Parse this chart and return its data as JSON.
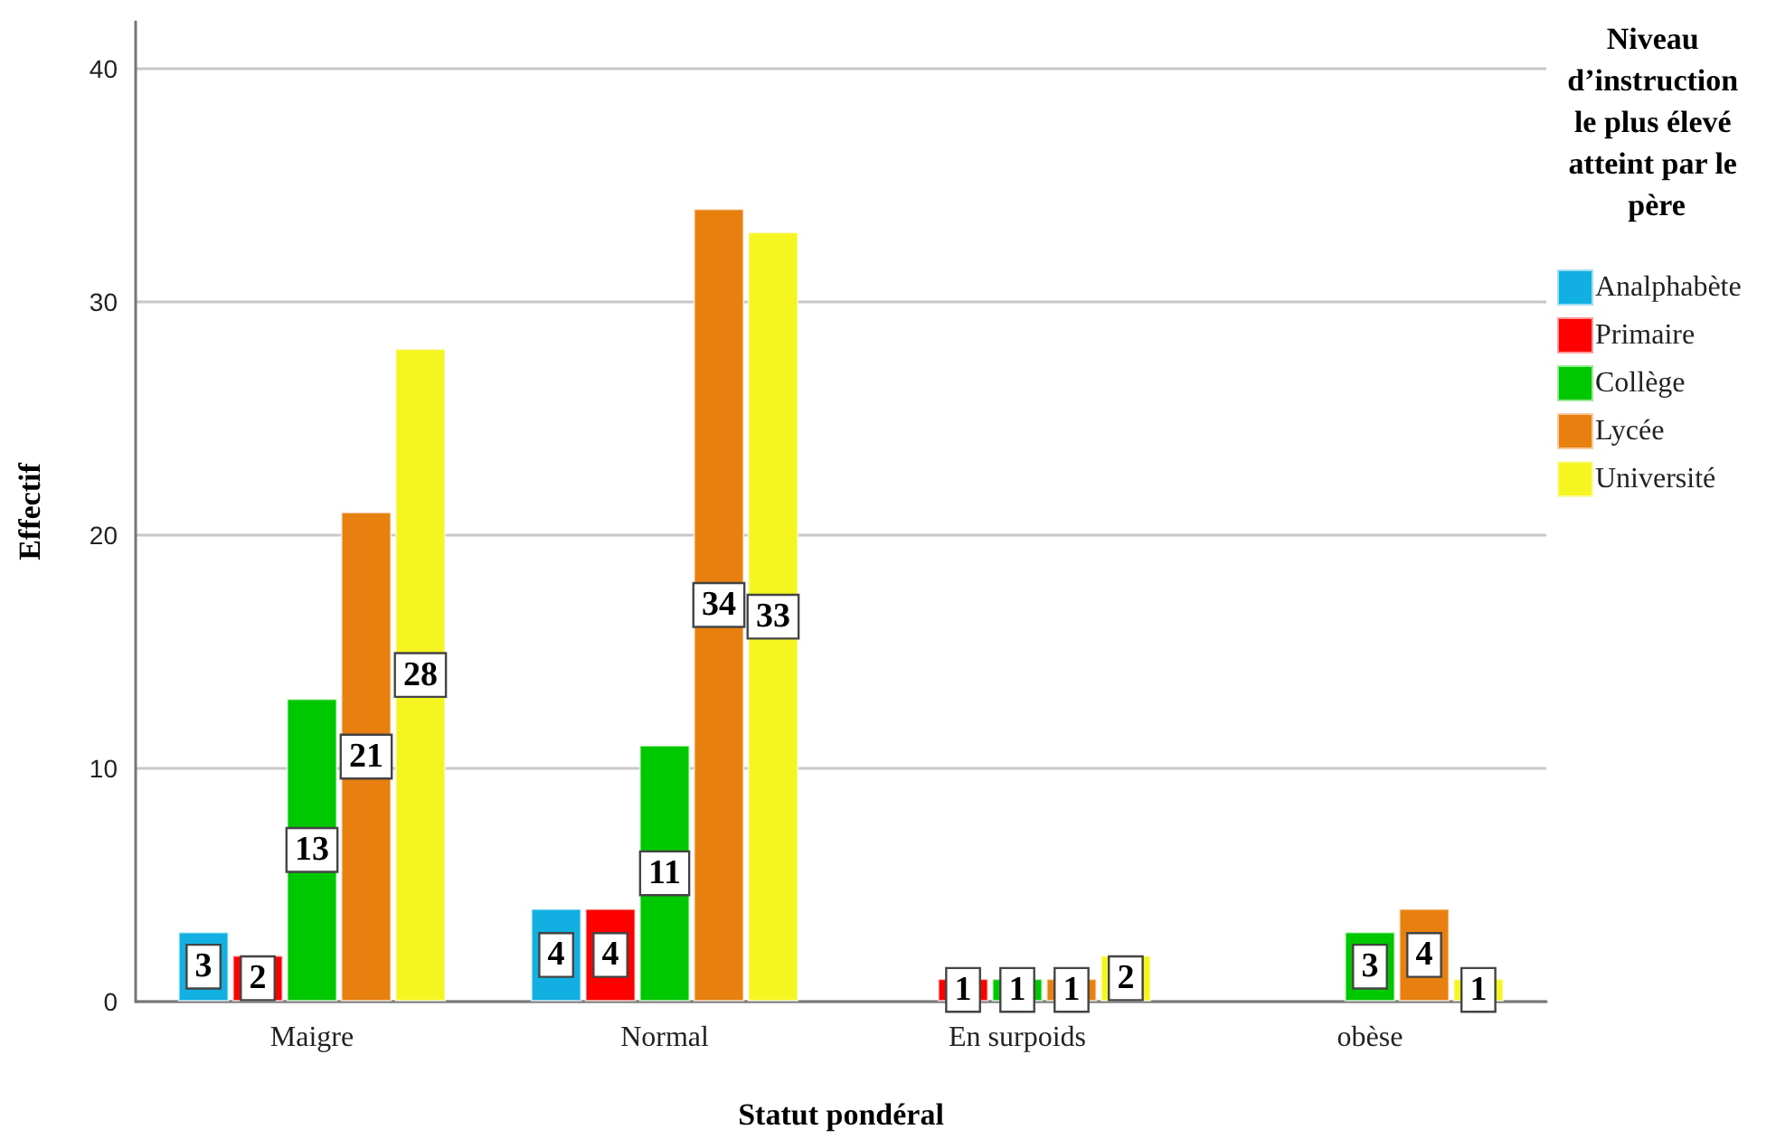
{
  "chart_data": {
    "type": "bar",
    "xlabel": "Statut pondéral",
    "ylabel": "Effectif",
    "legend_title": "Niveau d’instruction le plus élevé atteint par le père",
    "categories": [
      "Maigre",
      "Normal",
      "En surpoids",
      "obèse"
    ],
    "series": [
      {
        "name": "Analphabète",
        "color": "#12b0e2",
        "values": [
          3,
          4,
          null,
          null
        ]
      },
      {
        "name": "Primaire",
        "color": "#ff0000",
        "values": [
          2,
          4,
          1,
          null
        ]
      },
      {
        "name": "Collège",
        "color": "#00c800",
        "values": [
          13,
          11,
          1,
          3
        ]
      },
      {
        "name": "Lycée",
        "color": "#e8800f",
        "values": [
          21,
          34,
          1,
          4
        ]
      },
      {
        "name": "Université",
        "color": "#f5f522",
        "values": [
          28,
          33,
          2,
          1
        ]
      }
    ],
    "ylim": [
      0,
      42
    ],
    "yticks": [
      0,
      10,
      20,
      30,
      40
    ],
    "grid": "y",
    "legend": "right",
    "data_labels": true
  }
}
